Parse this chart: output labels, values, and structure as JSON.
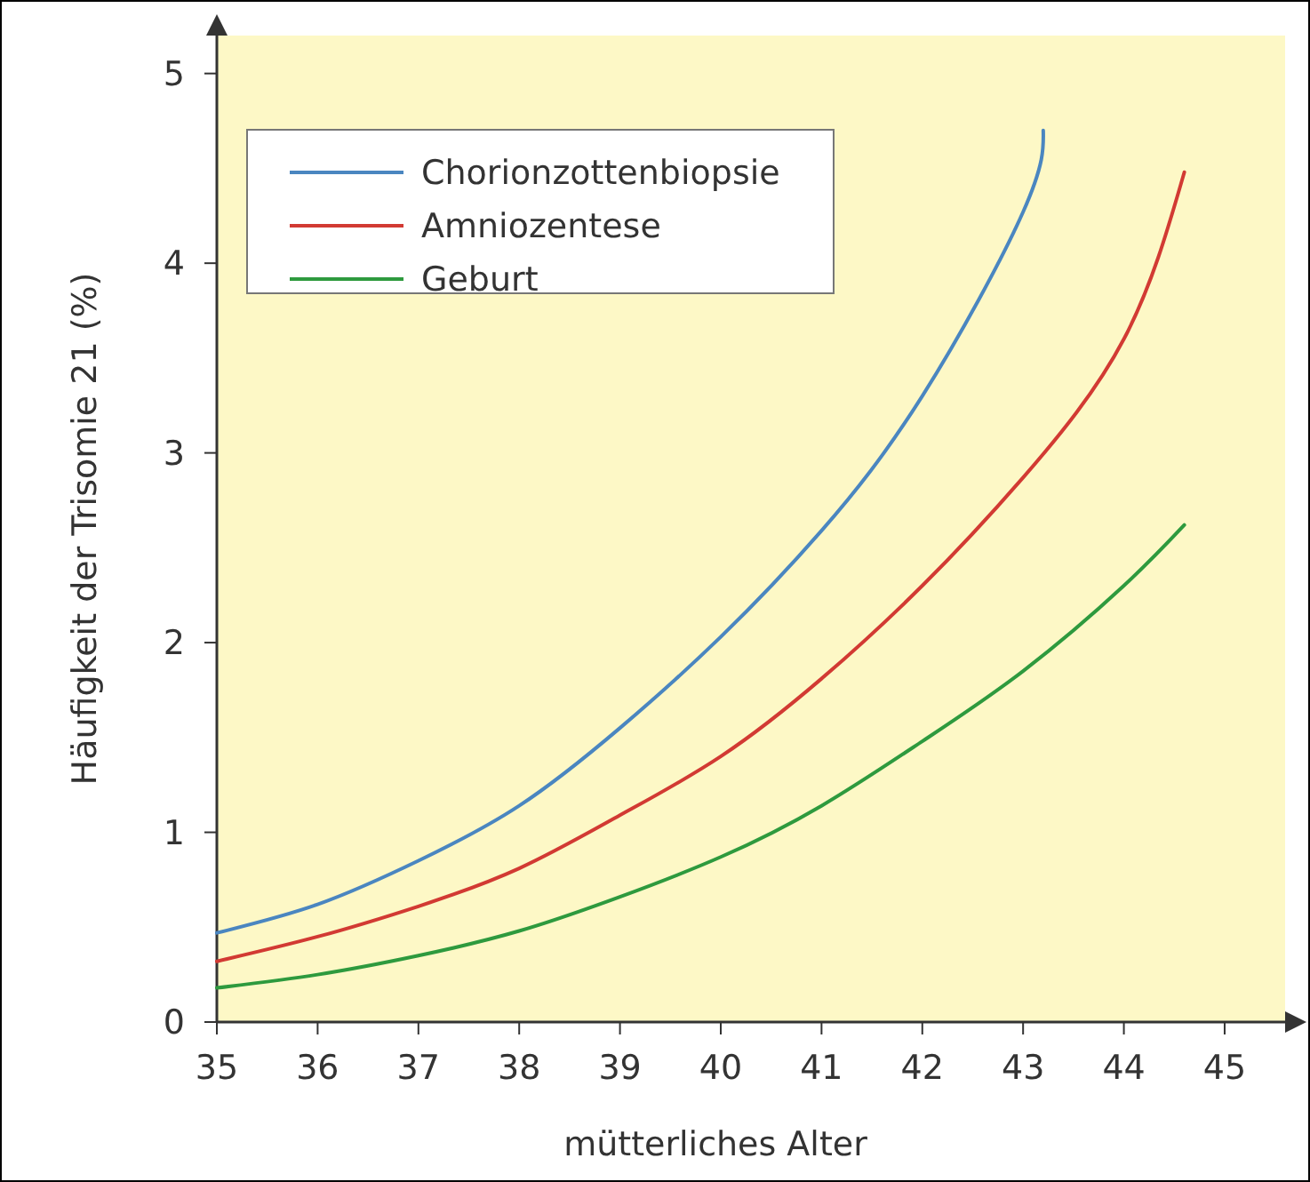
{
  "chart_data": {
    "type": "line",
    "xlabel": "mütterliches Alter",
    "ylabel": "Häufigkeit der Trisomie 21 (%)",
    "xlim": [
      35,
      45.6
    ],
    "ylim": [
      0,
      5.2
    ],
    "xticks": [
      35,
      36,
      37,
      38,
      39,
      40,
      41,
      42,
      43,
      44,
      45
    ],
    "yticks": [
      0,
      1,
      2,
      3,
      4,
      5
    ],
    "grid": false,
    "legend": "top left",
    "marker": "none",
    "line_style": "solid",
    "series": [
      {
        "name": "Chorionzottenbiopsie",
        "color": "#4a86c0",
        "x": [
          35,
          36,
          37,
          38,
          39,
          40,
          41,
          42,
          43,
          43.2
        ],
        "values": [
          0.47,
          0.62,
          0.85,
          1.14,
          1.55,
          2.03,
          2.59,
          3.3,
          4.27,
          4.7
        ]
      },
      {
        "name": "Amniozentese",
        "color": "#d23a33",
        "x": [
          35,
          36,
          37,
          38,
          39,
          40,
          41,
          42,
          43,
          44,
          44.6
        ],
        "values": [
          0.32,
          0.45,
          0.61,
          0.81,
          1.09,
          1.4,
          1.81,
          2.3,
          2.87,
          3.6,
          4.48
        ]
      },
      {
        "name": "Geburt",
        "color": "#2e9a3e",
        "x": [
          35,
          36,
          37,
          38,
          39,
          40,
          41,
          42,
          43,
          44,
          44.6
        ],
        "values": [
          0.18,
          0.25,
          0.35,
          0.48,
          0.66,
          0.87,
          1.14,
          1.48,
          1.85,
          2.3,
          2.62
        ]
      }
    ]
  }
}
